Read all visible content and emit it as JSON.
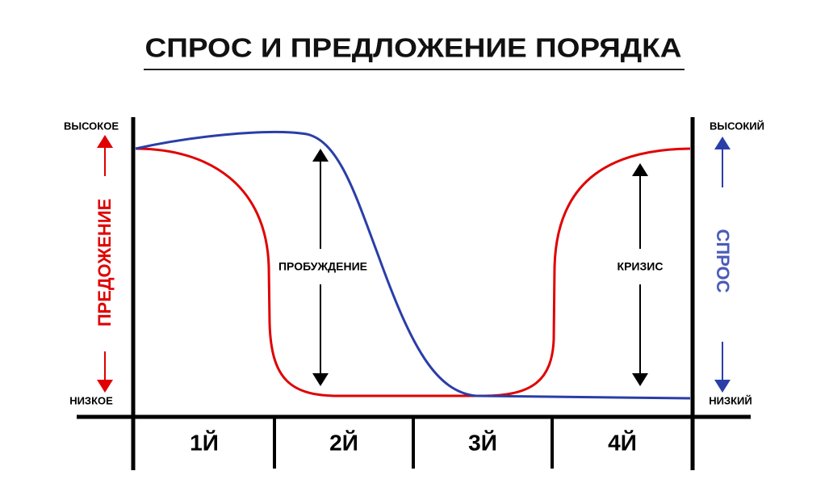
{
  "title": "СПРОС И ПРЕДЛОЖЕНИЕ ПОРЯДКА",
  "left_axis": {
    "label": "ПРЕДОЖЕНИЕ",
    "high": "ВЫСОКОЕ",
    "low": "НИЗКОЕ"
  },
  "right_axis": {
    "label": "СПРОС",
    "high": "ВЫСОКИЙ",
    "low": "НИЗКИЙ"
  },
  "annotations": [
    "ПРОБУЖДЕНИЕ",
    "КРИЗИС"
  ],
  "periods": [
    "1Й",
    "2Й",
    "3Й",
    "4Й"
  ]
}
